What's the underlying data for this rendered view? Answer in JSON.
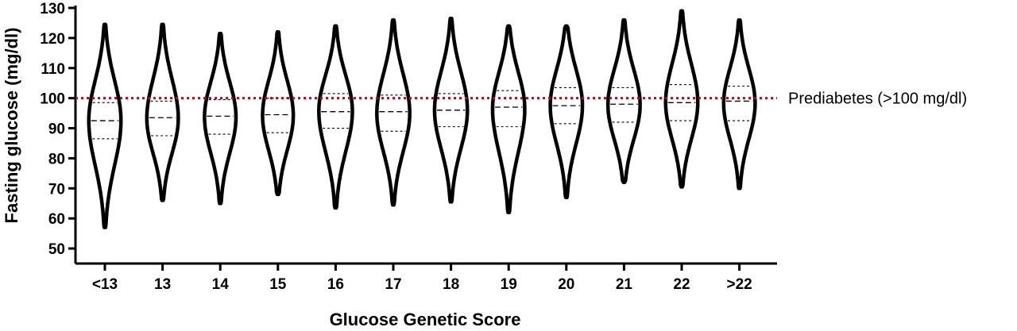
{
  "chart_data": {
    "type": "violin",
    "xlabel": "Glucose Genetic Score",
    "ylabel": "Fasting glucose (mg/dl)",
    "ylim": [
      45,
      130
    ],
    "yticks": [
      50,
      60,
      70,
      80,
      90,
      100,
      110,
      120,
      130
    ],
    "reference_line": {
      "value": 100,
      "label": "Prediabetes (>100 mg/dl)",
      "color": "#a0141c"
    },
    "categories": [
      "<13",
      "13",
      "14",
      "15",
      "16",
      "17",
      "18",
      "19",
      "20",
      "21",
      "22",
      ">22"
    ],
    "series": [
      {
        "category": "<13",
        "min": 57,
        "q1": 86.5,
        "median": 92.5,
        "q3": 98.5,
        "max": 124.5,
        "width": 0.92
      },
      {
        "category": "13",
        "min": 66,
        "q1": 87.5,
        "median": 93.5,
        "q3": 99,
        "max": 124.5,
        "width": 0.9
      },
      {
        "category": "14",
        "min": 65,
        "q1": 88,
        "median": 94,
        "q3": 99.5,
        "max": 121.5,
        "width": 0.9
      },
      {
        "category": "15",
        "min": 68,
        "q1": 88.5,
        "median": 94.5,
        "q3": 100,
        "max": 122,
        "width": 0.88
      },
      {
        "category": "16",
        "min": 63.5,
        "q1": 90,
        "median": 95.5,
        "q3": 101.5,
        "max": 124,
        "width": 0.96
      },
      {
        "category": "17",
        "min": 64.5,
        "q1": 89,
        "median": 95.5,
        "q3": 101,
        "max": 126,
        "width": 0.94
      },
      {
        "category": "18",
        "min": 65.5,
        "q1": 90.5,
        "median": 96,
        "q3": 101.5,
        "max": 126.5,
        "width": 0.94
      },
      {
        "category": "19",
        "min": 62,
        "q1": 90.5,
        "median": 97,
        "q3": 102.5,
        "max": 124,
        "width": 0.92
      },
      {
        "category": "20",
        "min": 67,
        "q1": 91.5,
        "median": 97.5,
        "q3": 103.5,
        "max": 124,
        "width": 0.92
      },
      {
        "category": "21",
        "min": 72,
        "q1": 92,
        "median": 98,
        "q3": 103.5,
        "max": 126,
        "width": 0.92
      },
      {
        "category": "22",
        "min": 70.5,
        "q1": 92.5,
        "median": 98.5,
        "q3": 104.5,
        "max": 129,
        "width": 0.92
      },
      {
        "category": ">22",
        "min": 70,
        "q1": 92.5,
        "median": 99,
        "q3": 104,
        "max": 126,
        "width": 0.9
      }
    ]
  }
}
